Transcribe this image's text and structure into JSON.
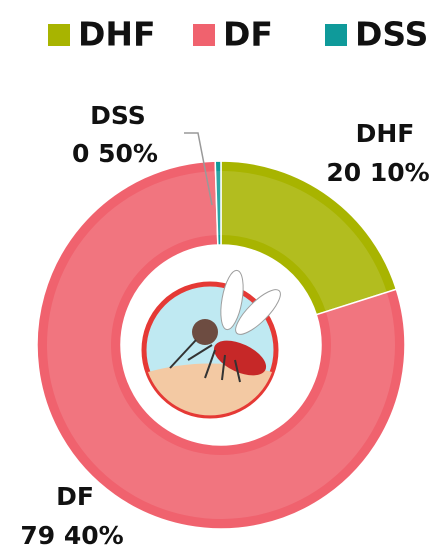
{
  "chart_data": {
    "type": "donut",
    "categories": [
      "DHF",
      "DF",
      "DSS"
    ],
    "values": [
      20.1,
      79.4,
      0.5
    ],
    "value_labels": [
      "20 10%",
      "79 40%",
      "0 50%"
    ],
    "colors": [
      "#a8b400",
      "#f0626e",
      "#0f9a9a"
    ],
    "legend": "top"
  }
}
